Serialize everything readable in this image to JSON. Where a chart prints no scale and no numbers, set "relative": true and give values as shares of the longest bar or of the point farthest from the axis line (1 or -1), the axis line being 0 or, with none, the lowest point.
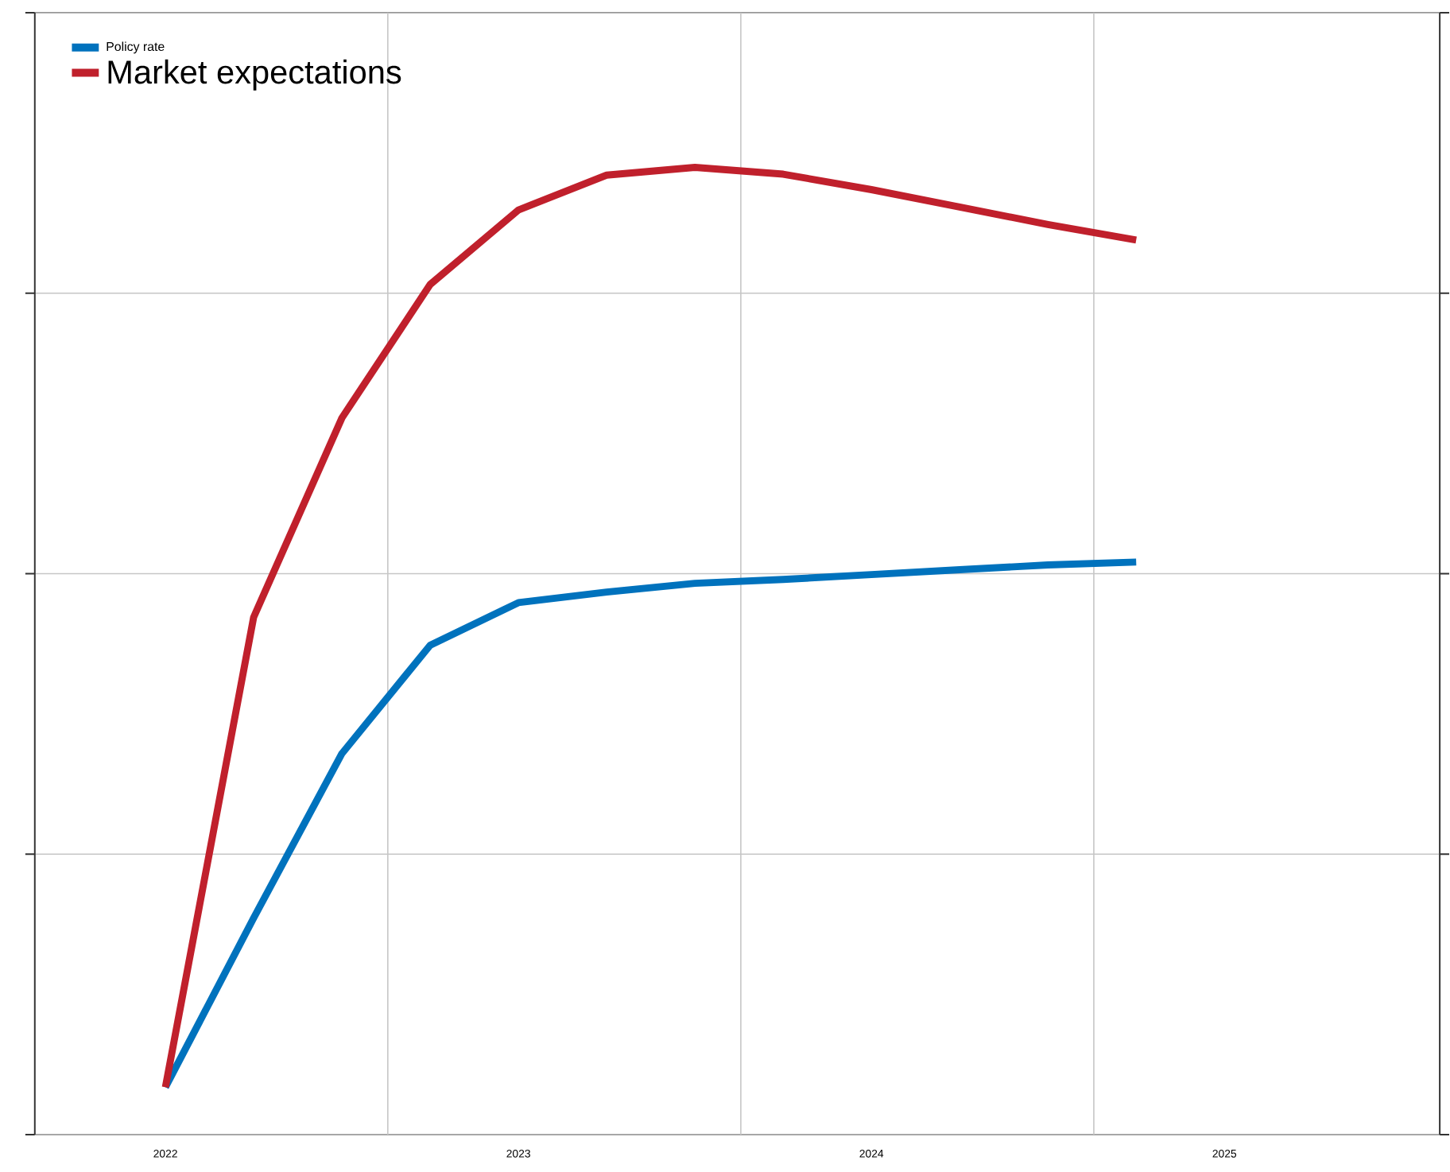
{
  "chart_data": {
    "type": "line",
    "relative": true,
    "x": [
      2022,
      2022.25,
      2022.5,
      2022.75,
      2023,
      2023.25,
      2023.5,
      2023.75,
      2024,
      2024.25,
      2024.5,
      2024.75
    ],
    "xlim": [
      2021.63,
      2025.61
    ],
    "xticks": [
      2022,
      2023,
      2024,
      2025,
      {
        "value": 2022.63,
        "label": null
      },
      {
        "value": 2023.63,
        "label": null
      },
      {
        "value": 2024.63,
        "label": null
      }
    ],
    "series": [
      {
        "name": "Policy rate",
        "color": "#0072bd",
        "values": [
          0.049,
          0.224,
          0.394,
          0.506,
          0.55,
          0.561,
          0.57,
          0.574,
          0.579,
          0.584,
          0.589,
          0.592
        ]
      },
      {
        "name": "Market expectations",
        "color": "#c0202c",
        "values": [
          0.049,
          0.535,
          0.741,
          0.879,
          0.956,
          0.992,
          1,
          0.993,
          0.977,
          0.959,
          0.941,
          0.925
        ]
      }
    ],
    "grid": true,
    "legend": "top left",
    "line_style": "solid",
    "marker": "none"
  }
}
